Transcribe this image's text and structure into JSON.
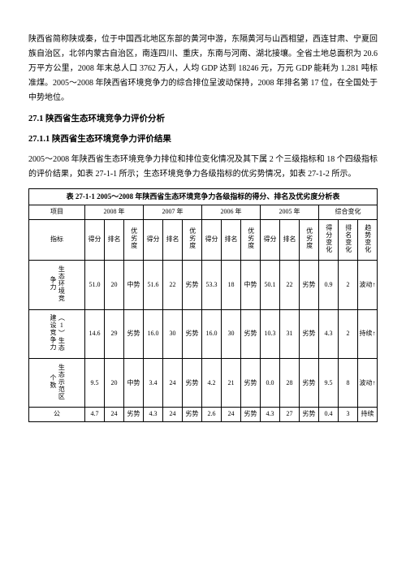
{
  "intro": "陕西省简称陕或秦，位于中国西北地区东部的黄河中游，东隔黄河与山西相望，西连甘肃、宁夏回族自治区，北邻内蒙古自治区，南连四川、重庆，东南与河南、湖北接壤。全省土地总面积为 20.6 万平方公里，2008 年末总人口 3762 万人，人均 GDP 达到 18246 元，万元 GDP 能耗为 1.281 吨标准煤。2005～2008 年陕西省环境竞争力的综合排位呈波动保持，2008 年排名第 17 位，在全国处于中势地位。",
  "h1": "27.1 陕西省生态环境竞争力评价分析",
  "h2": "27.1.1 陕西省生态环境竞争力评价结果",
  "para2": "2005～2008 年陕西省生态环境竞争力排位和排位变化情况及其下属 2 个三级指标和 18 个四级指标的评价结果，如表 27-1-1 所示；生态环境竞争力各级指标的优劣势情况，如表 27-1-2 所示。",
  "tableTitle": "表 27-1-1 2005～2008 年陕西省生态环境竞争力各级指标的得分、排名及优劣度分析表",
  "headers": {
    "item": "项目",
    "indicator": "指标",
    "y2008": "2008 年",
    "y2007": "2007 年",
    "y2006": "2006 年",
    "y2005": "2005 年",
    "comp": "综合变化",
    "score": "得分",
    "rank": "排名",
    "grade": "优劣度",
    "scoreChg": "得分变化",
    "rankChg": "排名变化",
    "trend": "趋势变化"
  },
  "rows": [
    {
      "label": "生态环境竞争力",
      "s08": "51.0",
      "r08": "20",
      "g08": "中势",
      "s07": "51.6",
      "r07": "22",
      "g07": "劣势",
      "s06": "53.3",
      "r06": "18",
      "g06": "中势",
      "s05": "50.1",
      "r05": "22",
      "g05": "劣势",
      "sc": "0.9",
      "rc": "2",
      "tc": "波动↑"
    },
    {
      "label": "（1）生态建设竞争力",
      "s08": "14.6",
      "r08": "29",
      "g08": "劣势",
      "s07": "16.0",
      "r07": "30",
      "g07": "劣势",
      "s06": "16.0",
      "r06": "30",
      "g06": "劣势",
      "s05": "10.3",
      "r05": "31",
      "g05": "劣势",
      "sc": "4.3",
      "rc": "2",
      "tc": "持续↑"
    },
    {
      "label": "生态示范区个数",
      "s08": "9.5",
      "r08": "20",
      "g08": "中势",
      "s07": "3.4",
      "r07": "24",
      "g07": "劣势",
      "s06": "4.2",
      "r06": "21",
      "g06": "劣势",
      "s05": "0.0",
      "r05": "28",
      "g05": "劣势",
      "sc": "9.5",
      "rc": "8",
      "tc": "波动↑"
    },
    {
      "label": "公",
      "s08": "4.7",
      "r08": "24",
      "g08": "劣势",
      "s07": "4.3",
      "r07": "24",
      "g07": "劣势",
      "s06": "2.6",
      "r06": "24",
      "g06": "劣势",
      "s05": "4.3",
      "r05": "27",
      "g05": "劣势",
      "sc": "0.4",
      "rc": "3",
      "tc": "持续"
    }
  ]
}
